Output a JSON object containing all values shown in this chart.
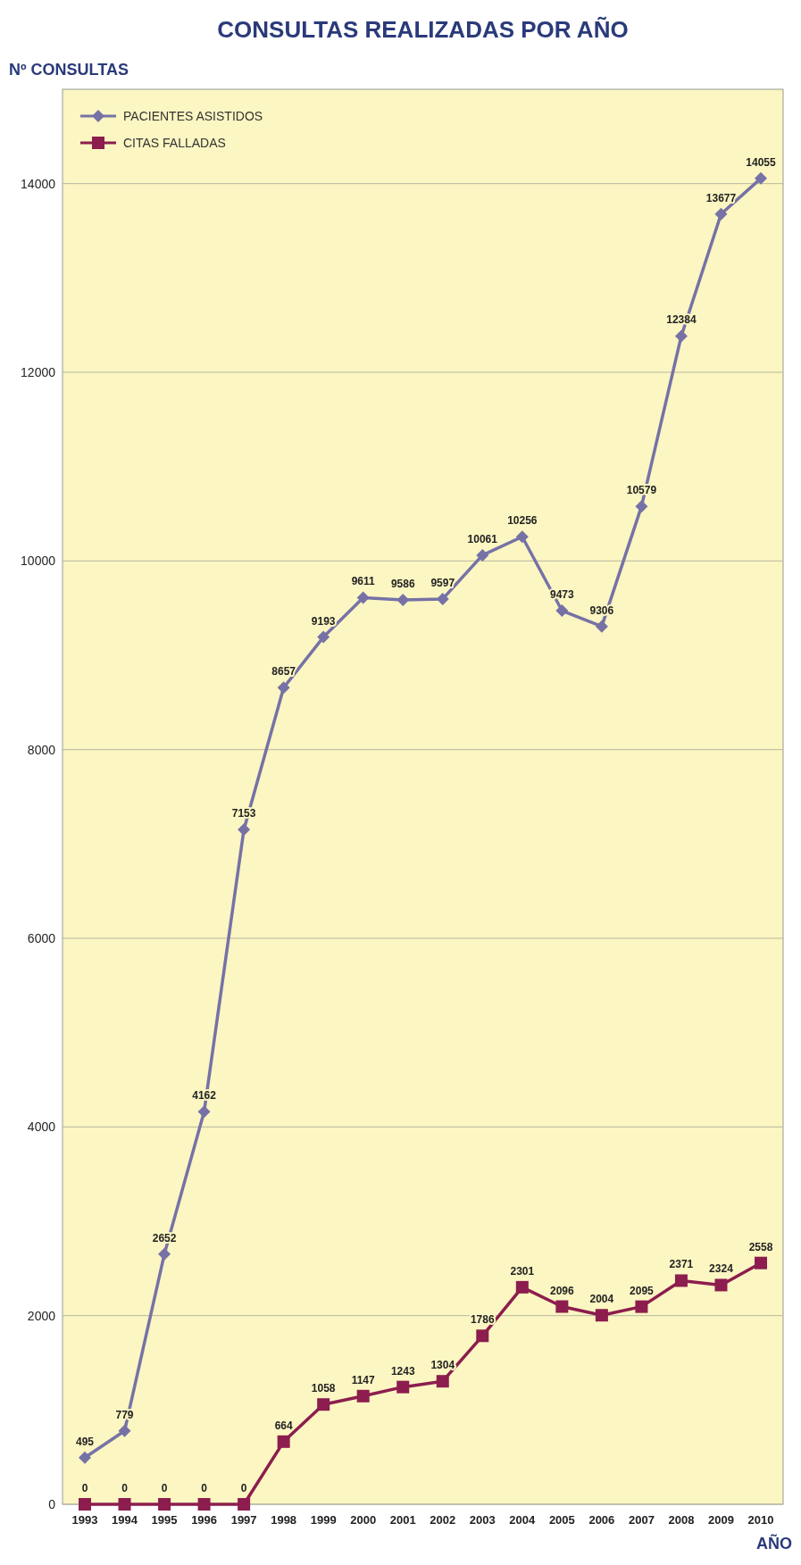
{
  "chart_data": {
    "type": "line",
    "title": "CONSULTAS REALIZADAS POR AÑO",
    "xlabel": "AÑO",
    "ylabel": "Nº CONSULTAS",
    "categories": [
      "1993",
      "1994",
      "1995",
      "1996",
      "1997",
      "1998",
      "1999",
      "2000",
      "2001",
      "2002",
      "2003",
      "2004",
      "2005",
      "2006",
      "2007",
      "2008",
      "2009",
      "2010"
    ],
    "series": [
      {
        "name": "PACIENTES ASISTIDOS",
        "color": "#7672a6",
        "marker": "diamond",
        "values": [
          495,
          779,
          2652,
          4162,
          7153,
          8657,
          9193,
          9611,
          9586,
          9597,
          10061,
          10256,
          9473,
          9306,
          10579,
          12384,
          13677,
          14055
        ]
      },
      {
        "name": "CITAS FALLADAS",
        "color": "#8c1d4e",
        "marker": "square",
        "values": [
          0,
          0,
          0,
          0,
          0,
          664,
          1058,
          1147,
          1243,
          1304,
          1786,
          2301,
          2096,
          2004,
          2095,
          2371,
          2324,
          2558
        ]
      }
    ],
    "ylim": [
      0,
      15000
    ],
    "yticks": [
      0,
      2000,
      4000,
      6000,
      8000,
      10000,
      12000,
      14000
    ],
    "grid": "y",
    "legend": "top left",
    "data_labels": true
  }
}
